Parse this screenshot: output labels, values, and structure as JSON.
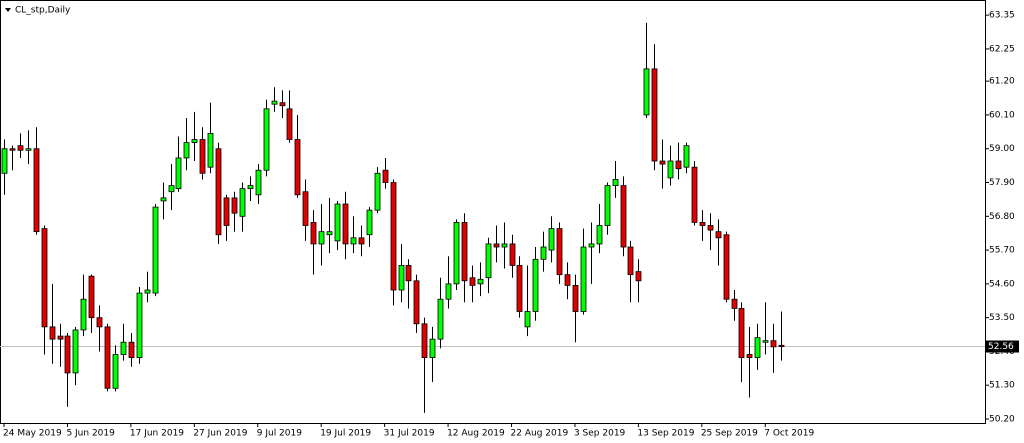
{
  "chart_data": {
    "type": "candlestick",
    "title": "CL_stp,Daily",
    "categories": [
      "24 May 2019",
      null,
      null,
      null,
      null,
      null,
      null,
      null,
      "5 Jun 2019",
      null,
      null,
      null,
      null,
      null,
      null,
      null,
      "17 Jun 2019",
      null,
      null,
      null,
      null,
      null,
      null,
      null,
      "27 Jun 2019",
      null,
      null,
      null,
      null,
      null,
      null,
      null,
      "9 Jul 2019",
      null,
      null,
      null,
      null,
      null,
      null,
      null,
      "19 Jul 2019",
      null,
      null,
      null,
      null,
      null,
      null,
      null,
      "31 Jul 2019",
      null,
      null,
      null,
      null,
      null,
      null,
      null,
      "12 Aug 2019",
      null,
      null,
      null,
      null,
      null,
      null,
      null,
      "22 Aug 2019",
      null,
      null,
      null,
      null,
      null,
      null,
      null,
      "3 Sep 2019",
      null,
      null,
      null,
      null,
      null,
      null,
      null,
      "13 Sep 2019",
      null,
      null,
      null,
      null,
      null,
      null,
      null,
      "25 Sep 2019",
      null,
      null,
      null,
      null,
      null,
      null,
      null,
      "7 Oct 2019",
      null,
      null
    ],
    "open": [
      58.2,
      59.0,
      59.1,
      58.95,
      59.0,
      56.4,
      53.2,
      52.9,
      52.9,
      51.7,
      53.1,
      54.85,
      53.5,
      53.2,
      51.2,
      52.3,
      52.7,
      52.2,
      54.3,
      54.3,
      57.3,
      57.6,
      57.7,
      58.7,
      59.2,
      59.3,
      58.4,
      59.0,
      57.4,
      57.4,
      56.8,
      57.7,
      57.5,
      58.3,
      60.45,
      60.5,
      60.3,
      59.3,
      57.6,
      56.6,
      55.9,
      56.2,
      56.0,
      57.2,
      55.9,
      56.1,
      56.2,
      57.0,
      58.3,
      57.9,
      54.4,
      55.2,
      54.7,
      53.3,
      52.2,
      52.8,
      54.1,
      54.6,
      56.6,
      54.8,
      54.6,
      54.8,
      55.9,
      55.8,
      55.9,
      55.2,
      53.2,
      53.7,
      55.4,
      55.7,
      56.4,
      54.9,
      54.55,
      53.7,
      55.8,
      55.9,
      56.5,
      57.8,
      57.8,
      55.8,
      55.0,
      60.1,
      61.6,
      58.6,
      58.05,
      58.6,
      58.4,
      58.4,
      56.6,
      56.5,
      56.3,
      56.2,
      54.1,
      53.8,
      52.3,
      52.2,
      52.7,
      52.75,
      52.6
    ],
    "high": [
      59.3,
      59.1,
      59.5,
      59.6,
      59.7,
      56.5,
      54.6,
      53.3,
      53.0,
      53.2,
      54.9,
      54.9,
      53.9,
      53.3,
      52.6,
      53.3,
      53.0,
      54.5,
      55.0,
      57.2,
      57.9,
      58.5,
      59.4,
      60.0,
      60.2,
      59.7,
      60.5,
      59.2,
      57.5,
      57.6,
      57.9,
      58.1,
      58.5,
      60.6,
      61.0,
      60.9,
      60.9,
      60.1,
      58.0,
      57.0,
      57.2,
      57.4,
      57.3,
      57.6,
      56.8,
      56.5,
      57.1,
      58.4,
      58.7,
      58.0,
      55.9,
      55.4,
      54.9,
      53.5,
      53.2,
      54.8,
      55.5,
      56.7,
      56.9,
      55.2,
      55.3,
      56.1,
      56.5,
      56.6,
      56.2,
      55.5,
      55.2,
      55.8,
      56.3,
      56.8,
      56.6,
      55.3,
      54.9,
      56.4,
      56.6,
      57.2,
      57.9,
      58.6,
      58.1,
      56.0,
      55.4,
      63.1,
      62.4,
      59.3,
      59.1,
      59.2,
      59.2,
      58.6,
      57.0,
      56.9,
      56.7,
      56.3,
      54.4,
      54.0,
      53.2,
      53.3,
      54.0,
      53.3,
      53.7
    ],
    "low": [
      57.5,
      58.3,
      58.7,
      58.5,
      56.2,
      52.3,
      52.0,
      51.9,
      50.6,
      51.3,
      52.9,
      53.0,
      52.4,
      51.1,
      51.1,
      52.1,
      51.9,
      52.0,
      54.0,
      54.2,
      56.7,
      57.0,
      57.6,
      58.3,
      58.6,
      58.0,
      58.2,
      55.9,
      56.0,
      56.3,
      56.3,
      57.3,
      57.2,
      58.1,
      60.2,
      60.0,
      59.2,
      57.4,
      56.0,
      54.9,
      55.2,
      55.6,
      55.7,
      55.4,
      55.6,
      55.5,
      55.8,
      56.9,
      57.7,
      53.9,
      54.0,
      53.8,
      53.0,
      50.4,
      51.4,
      52.5,
      53.8,
      54.4,
      54.0,
      54.0,
      54.2,
      54.3,
      55.3,
      55.1,
      54.8,
      53.5,
      52.9,
      53.4,
      55.0,
      55.3,
      54.6,
      54.1,
      52.7,
      53.6,
      54.6,
      55.6,
      56.2,
      57.4,
      55.5,
      54.0,
      54.0,
      60.0,
      58.3,
      57.7,
      57.8,
      58.0,
      58.2,
      56.5,
      56.0,
      55.7,
      55.2,
      54.0,
      53.4,
      51.4,
      50.9,
      51.8,
      52.3,
      51.7,
      52.1
    ],
    "close": [
      59.0,
      58.95,
      58.95,
      59.0,
      56.3,
      53.2,
      52.8,
      52.8,
      51.7,
      53.1,
      54.1,
      53.5,
      53.2,
      51.2,
      52.3,
      52.7,
      52.2,
      54.3,
      54.4,
      57.1,
      57.4,
      57.8,
      58.7,
      59.2,
      59.3,
      58.2,
      59.5,
      56.2,
      56.5,
      56.9,
      57.7,
      57.8,
      58.3,
      60.3,
      60.55,
      60.4,
      59.3,
      57.5,
      56.5,
      55.9,
      56.3,
      56.3,
      57.2,
      55.9,
      56.1,
      55.9,
      57.0,
      58.2,
      57.9,
      54.4,
      55.2,
      54.7,
      53.3,
      52.2,
      52.8,
      54.1,
      54.6,
      56.6,
      54.7,
      54.55,
      54.75,
      55.9,
      55.8,
      55.9,
      55.2,
      53.7,
      53.7,
      55.4,
      55.8,
      56.4,
      54.9,
      54.55,
      53.7,
      55.8,
      55.9,
      56.5,
      57.8,
      58.0,
      55.8,
      54.9,
      54.7,
      61.6,
      58.6,
      58.5,
      58.6,
      58.35,
      59.1,
      56.6,
      56.5,
      56.35,
      56.1,
      54.1,
      53.8,
      52.2,
      52.2,
      52.85,
      52.75,
      52.55,
      52.56
    ],
    "up_color": "#00ff00",
    "down_color": "#e00000",
    "current_price": 52.56,
    "ylim": [
      50.07,
      63.81
    ],
    "yticks": [
      {
        "value": 63.35,
        "label": "63.35"
      },
      {
        "value": 62.25,
        "label": "62.25"
      },
      {
        "value": 61.2,
        "label": "61.20"
      },
      {
        "value": 60.1,
        "label": "60.10"
      },
      {
        "value": 59.0,
        "label": "59.00"
      },
      {
        "value": 57.9,
        "label": "57.90"
      },
      {
        "value": 56.8,
        "label": "56.80"
      },
      {
        "value": 55.7,
        "label": "55.70"
      },
      {
        "value": 54.6,
        "label": "54.60"
      },
      {
        "value": 53.5,
        "label": "53.50"
      },
      {
        "value": 52.4,
        "label": "52.40"
      },
      {
        "value": 51.3,
        "label": "51.30"
      },
      {
        "value": 50.2,
        "label": "50.20"
      }
    ]
  }
}
